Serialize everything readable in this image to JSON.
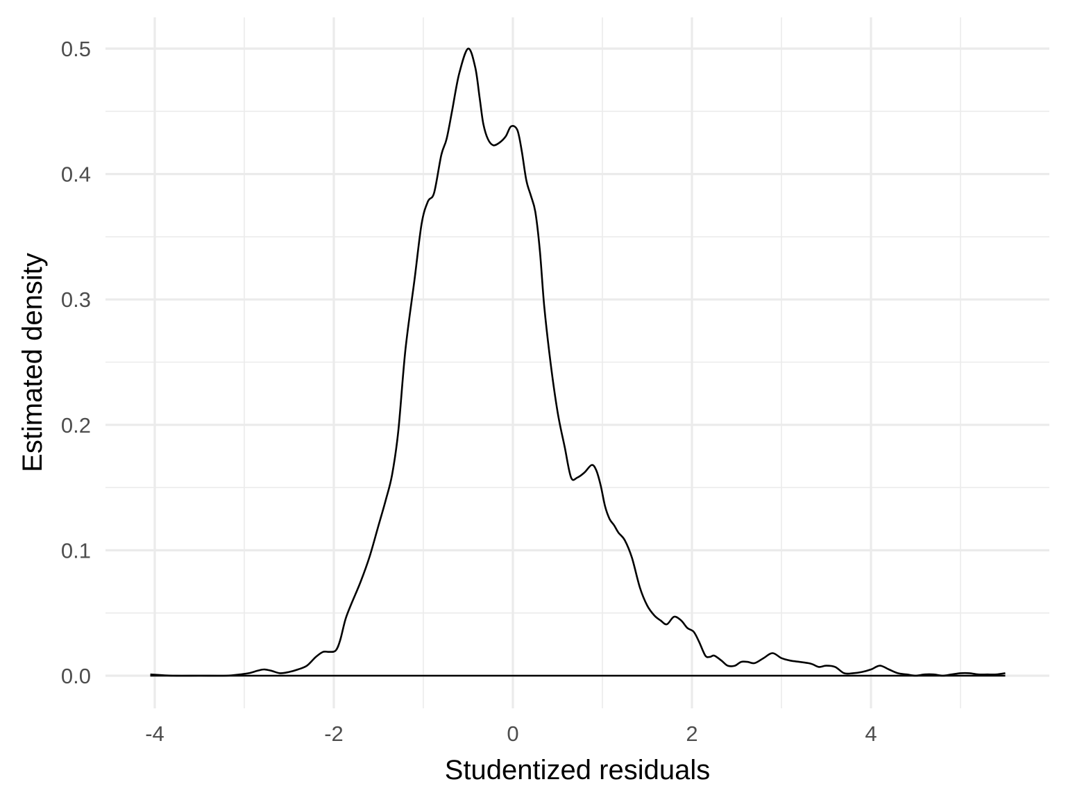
{
  "chart_data": {
    "type": "line",
    "title": "",
    "xlabel": "Studentized residuals",
    "ylabel": "Estimated density",
    "xlim": [
      -4.5,
      5.7
    ],
    "ylim": [
      -0.025,
      0.525
    ],
    "x_ticks": [
      -4,
      -2,
      0,
      2,
      4
    ],
    "x_tick_labels": [
      "-4",
      "-2",
      "0",
      "2",
      "4"
    ],
    "x_minor_ticks": [
      -3,
      -1,
      1,
      3,
      5
    ],
    "y_ticks": [
      0.0,
      0.1,
      0.2,
      0.3,
      0.4,
      0.5
    ],
    "y_tick_labels": [
      "0.0",
      "0.1",
      "0.2",
      "0.3",
      "0.4",
      "0.5"
    ],
    "y_minor_ticks": [
      0.05,
      0.15,
      0.25,
      0.35,
      0.45
    ],
    "grid": true,
    "baseline_range": [
      -4.05,
      5.5
    ],
    "series": [
      {
        "name": "density",
        "color": "#000000",
        "x": [
          -4.05,
          -3.8,
          -3.5,
          -3.2,
          -3.05,
          -2.95,
          -2.85,
          -2.78,
          -2.7,
          -2.6,
          -2.5,
          -2.4,
          -2.3,
          -2.2,
          -2.12,
          -2.05,
          -1.98,
          -1.93,
          -1.87,
          -1.8,
          -1.7,
          -1.6,
          -1.5,
          -1.42,
          -1.35,
          -1.28,
          -1.2,
          -1.1,
          -1.02,
          -0.95,
          -0.88,
          -0.8,
          -0.74,
          -0.68,
          -0.6,
          -0.5,
          -0.42,
          -0.37,
          -0.33,
          -0.28,
          -0.22,
          -0.15,
          -0.08,
          -0.02,
          0.05,
          0.1,
          0.15,
          0.2,
          0.25,
          0.3,
          0.35,
          0.42,
          0.5,
          0.58,
          0.65,
          0.72,
          0.8,
          0.88,
          0.93,
          0.98,
          1.03,
          1.08,
          1.13,
          1.18,
          1.25,
          1.33,
          1.42,
          1.5,
          1.58,
          1.65,
          1.72,
          1.8,
          1.88,
          1.95,
          2.02,
          2.08,
          2.15,
          2.2,
          2.25,
          2.33,
          2.4,
          2.48,
          2.55,
          2.62,
          2.7,
          2.8,
          2.9,
          3.0,
          3.1,
          3.2,
          3.3,
          3.35,
          3.42,
          3.5,
          3.6,
          3.7,
          3.8,
          3.9,
          4.0,
          4.1,
          4.2,
          4.3,
          4.4,
          4.5,
          4.6,
          4.7,
          4.8,
          4.9,
          5.0,
          5.1,
          5.2,
          5.3,
          5.4,
          5.5
        ],
        "y": [
          0.001,
          0.0,
          0.0,
          0.0,
          0.001,
          0.002,
          0.004,
          0.005,
          0.004,
          0.002,
          0.003,
          0.005,
          0.008,
          0.015,
          0.019,
          0.019,
          0.02,
          0.028,
          0.045,
          0.058,
          0.075,
          0.095,
          0.12,
          0.14,
          0.16,
          0.195,
          0.26,
          0.315,
          0.36,
          0.378,
          0.385,
          0.415,
          0.428,
          0.45,
          0.48,
          0.5,
          0.485,
          0.46,
          0.44,
          0.428,
          0.423,
          0.425,
          0.43,
          0.438,
          0.435,
          0.418,
          0.395,
          0.383,
          0.37,
          0.34,
          0.295,
          0.25,
          0.21,
          0.182,
          0.158,
          0.158,
          0.162,
          0.168,
          0.164,
          0.152,
          0.135,
          0.125,
          0.12,
          0.114,
          0.108,
          0.094,
          0.07,
          0.056,
          0.048,
          0.044,
          0.041,
          0.047,
          0.044,
          0.038,
          0.035,
          0.027,
          0.016,
          0.015,
          0.016,
          0.012,
          0.008,
          0.008,
          0.011,
          0.011,
          0.01,
          0.014,
          0.018,
          0.014,
          0.012,
          0.011,
          0.01,
          0.009,
          0.007,
          0.008,
          0.007,
          0.002,
          0.002,
          0.003,
          0.005,
          0.008,
          0.005,
          0.002,
          0.001,
          0.0,
          0.001,
          0.001,
          0.0,
          0.001,
          0.002,
          0.002,
          0.001,
          0.001,
          0.001,
          0.002
        ]
      }
    ]
  }
}
